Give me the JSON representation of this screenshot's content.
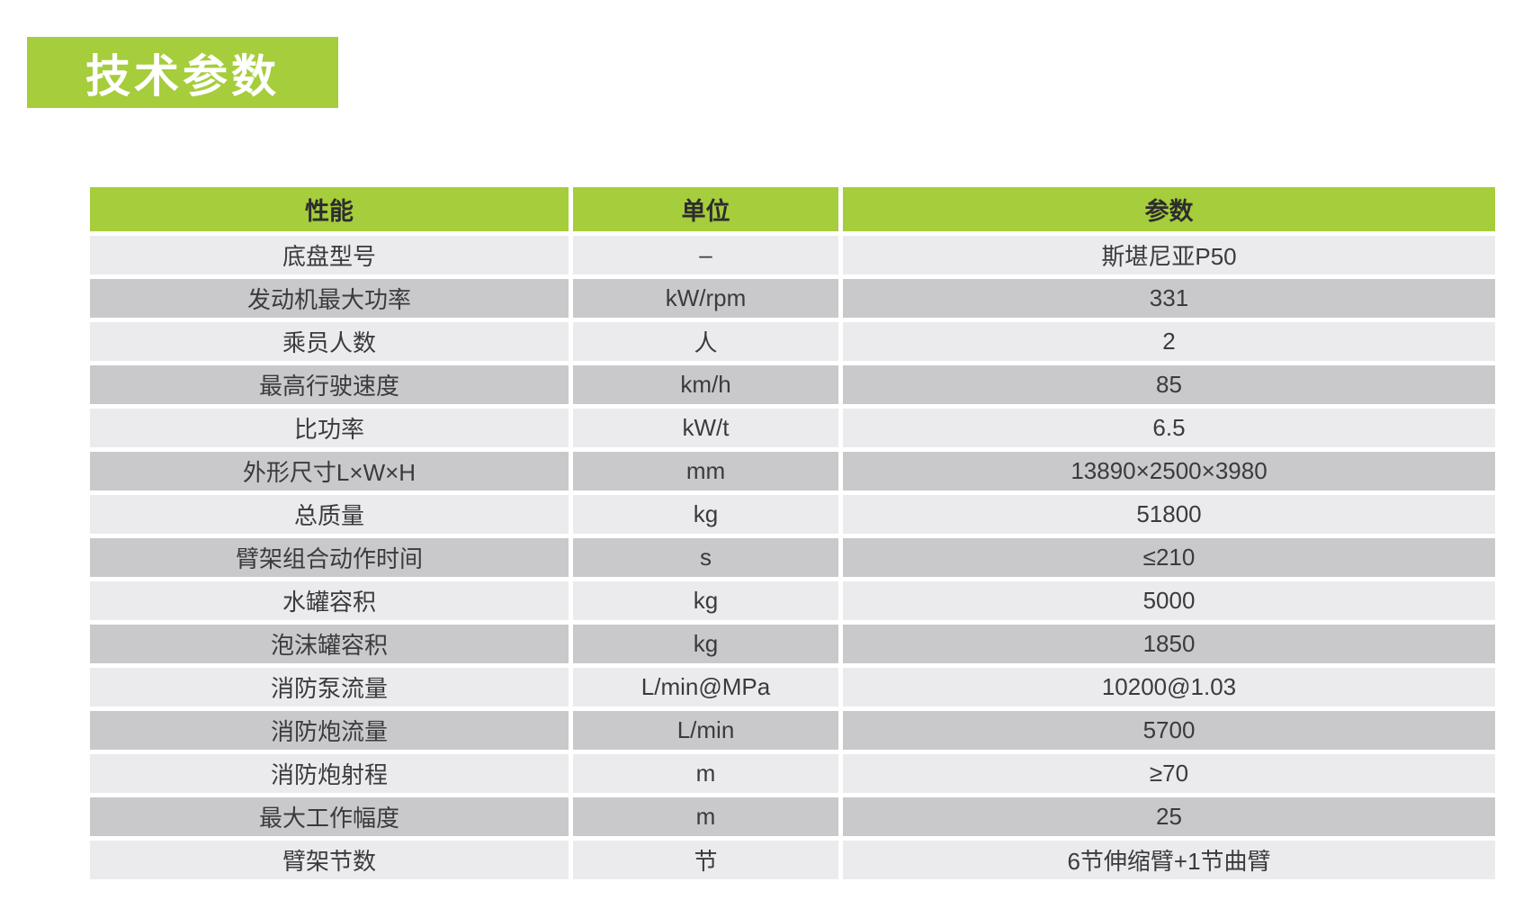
{
  "title": {
    "text": "技术参数"
  },
  "colors": {
    "accent_green": "#a6cd3b",
    "row_light": "#ebebed",
    "row_dark": "#c9c9cb",
    "header_text": "#2d2d2d",
    "cell_text": "#3b3b3d",
    "title_text": "#ffffff"
  },
  "table": {
    "headers": [
      "性能",
      "单位",
      "参数"
    ],
    "rows": [
      {
        "property": "底盘型号",
        "unit": "–",
        "value": "斯堪尼亚P50"
      },
      {
        "property": "发动机最大功率",
        "unit": "kW/rpm",
        "value": "331"
      },
      {
        "property": "乘员人数",
        "unit": "人",
        "value": "2"
      },
      {
        "property": "最高行驶速度",
        "unit": "km/h",
        "value": "85"
      },
      {
        "property": "比功率",
        "unit": "kW/t",
        "value": "6.5"
      },
      {
        "property": "外形尺寸L×W×H",
        "unit": "mm",
        "value": "13890×2500×3980"
      },
      {
        "property": "总质量",
        "unit": "kg",
        "value": "51800"
      },
      {
        "property": "臂架组合动作时间",
        "unit": "s",
        "value": "≤210"
      },
      {
        "property": "水罐容积",
        "unit": "kg",
        "value": "5000"
      },
      {
        "property": "泡沫罐容积",
        "unit": "kg",
        "value": "1850"
      },
      {
        "property": "消防泵流量",
        "unit": "L/min@MPa",
        "value": "10200@1.03"
      },
      {
        "property": "消防炮流量",
        "unit": "L/min",
        "value": "5700"
      },
      {
        "property": "消防炮射程",
        "unit": "m",
        "value": "≥70"
      },
      {
        "property": "最大工作幅度",
        "unit": "m",
        "value": "25"
      },
      {
        "property": "臂架节数",
        "unit": "节",
        "value": "6节伸缩臂+1节曲臂"
      }
    ]
  }
}
